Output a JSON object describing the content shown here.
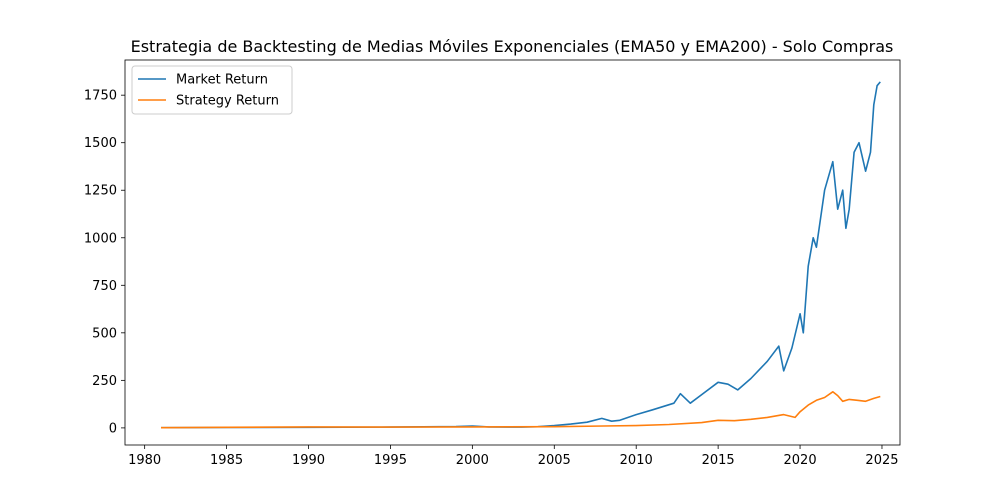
{
  "chart_data": {
    "type": "line",
    "title": "Estrategia de Backtesting de Medias Móviles Exponenciales (EMA50 y EMA200) - Solo Compras",
    "xlabel": "",
    "ylabel": "",
    "xlim": [
      1978.8,
      2026.1
    ],
    "ylim": [
      -90,
      1935
    ],
    "xticks": [
      1980,
      1985,
      1990,
      1995,
      2000,
      2005,
      2010,
      2015,
      2020,
      2025
    ],
    "xtick_labels": [
      "1980",
      "1985",
      "1990",
      "1995",
      "2000",
      "2005",
      "2010",
      "2015",
      "2020",
      "2025"
    ],
    "yticks": [
      0,
      250,
      500,
      750,
      1000,
      1250,
      1500,
      1750
    ],
    "ytick_labels": [
      "0",
      "250",
      "500",
      "750",
      "1000",
      "1250",
      "1500",
      "1750"
    ],
    "grid": false,
    "legend": {
      "position": "top-left",
      "entries": [
        "Market Return",
        "Strategy Return"
      ]
    },
    "series": [
      {
        "name": "Market Return",
        "color": "#1f77b4",
        "x": [
          1981.0,
          1985.0,
          1990.0,
          1995.0,
          1999.0,
          2000.0,
          2001.0,
          2003.0,
          2004.0,
          2005.0,
          2006.0,
          2007.0,
          2007.9,
          2008.5,
          2009.0,
          2010.0,
          2011.0,
          2012.3,
          2012.7,
          2013.3,
          2014.0,
          2015.0,
          2015.6,
          2016.2,
          2017.0,
          2018.0,
          2018.7,
          2019.0,
          2019.5,
          2020.0,
          2020.2,
          2020.5,
          2020.8,
          2021.0,
          2021.5,
          2022.0,
          2022.3,
          2022.6,
          2022.8,
          2023.0,
          2023.3,
          2023.6,
          2024.0,
          2024.3,
          2024.5,
          2024.7,
          2024.9
        ],
        "y": [
          1,
          2,
          3,
          4,
          7,
          10,
          5,
          4,
          6,
          12,
          20,
          30,
          50,
          35,
          40,
          70,
          95,
          130,
          180,
          130,
          175,
          240,
          230,
          200,
          260,
          350,
          430,
          300,
          420,
          600,
          500,
          850,
          1000,
          950,
          1250,
          1400,
          1150,
          1250,
          1050,
          1150,
          1450,
          1500,
          1350,
          1450,
          1700,
          1800,
          1820
        ]
      },
      {
        "name": "Strategy Return",
        "color": "#ff7f0e",
        "x": [
          1981.0,
          1985.0,
          1990.0,
          1995.0,
          2000.0,
          2005.0,
          2008.0,
          2010.0,
          2012.0,
          2014.0,
          2015.0,
          2016.0,
          2017.0,
          2018.0,
          2019.0,
          2019.7,
          2020.0,
          2020.5,
          2021.0,
          2021.5,
          2022.0,
          2022.3,
          2022.6,
          2023.0,
          2023.5,
          2024.0,
          2024.5,
          2024.9
        ],
        "y": [
          1,
          3,
          5,
          4,
          5,
          6,
          10,
          12,
          18,
          28,
          40,
          38,
          45,
          55,
          70,
          55,
          85,
          120,
          145,
          160,
          190,
          170,
          140,
          150,
          145,
          140,
          155,
          165
        ]
      }
    ]
  }
}
